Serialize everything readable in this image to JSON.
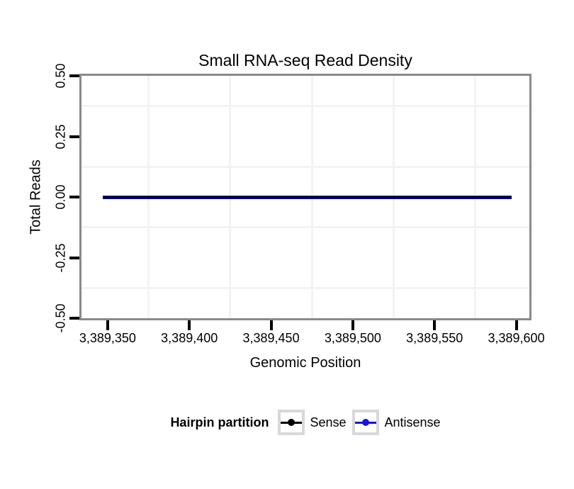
{
  "title": "Small RNA-seq Read Density",
  "chart_data": {
    "type": "line",
    "title": "Small RNA-seq Read Density",
    "xlabel": "Genomic Position",
    "ylabel": "Total Reads",
    "xlim": [
      3389334,
      3389608
    ],
    "ylim": [
      -0.5,
      0.5
    ],
    "x_ticks": [
      {
        "value": 3389350,
        "label": "3,389,350"
      },
      {
        "value": 3389400,
        "label": "3,389,400"
      },
      {
        "value": 3389450,
        "label": "3,389,450"
      },
      {
        "value": 3389500,
        "label": "3,389,500"
      },
      {
        "value": 3389550,
        "label": "3,389,550"
      },
      {
        "value": 3389600,
        "label": "3,389,600"
      }
    ],
    "y_ticks": [
      {
        "value": 0.5,
        "label": "0.50"
      },
      {
        "value": 0.25,
        "label": "0.25"
      },
      {
        "value": 0.0,
        "label": "0.00"
      },
      {
        "value": -0.25,
        "label": "-0.25"
      },
      {
        "value": -0.5,
        "label": "-0.50"
      }
    ],
    "grid": "minor gridlines only, between ticks, very light gray",
    "legend_position": "bottom",
    "series": [
      {
        "name": "Sense",
        "color": "#000000",
        "x": [
          3389347,
          3389597
        ],
        "y": [
          0,
          0
        ]
      },
      {
        "name": "Antisense",
        "color": "#1414e1",
        "x": [
          3389347,
          3389597
        ],
        "y": [
          0,
          0
        ]
      }
    ]
  },
  "legend": {
    "title": "Hairpin partition",
    "items": [
      {
        "label": "Sense",
        "color": "#000000"
      },
      {
        "label": "Antisense",
        "color": "#1414e1"
      }
    ]
  },
  "colors": {
    "background": "#ffffff",
    "panel_background": "#ffffff",
    "panel_border": "#8a8a8a",
    "grid": "#f3f3f3",
    "tick": "#000000",
    "legend_key_border": "#d8d8d8"
  }
}
